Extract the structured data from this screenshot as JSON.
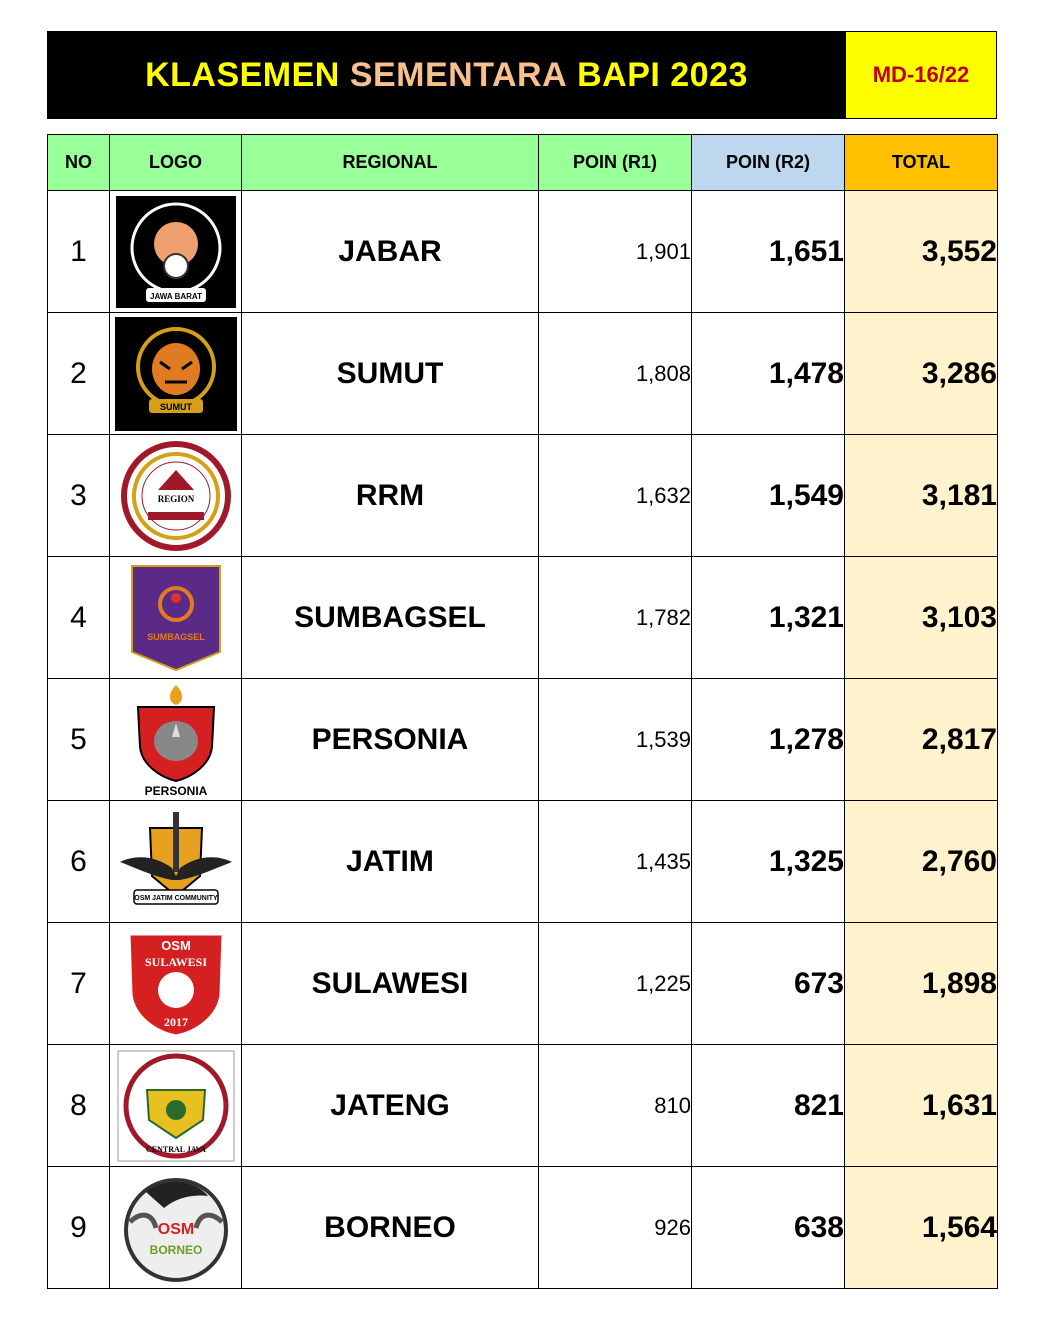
{
  "header": {
    "title_part1": "KLASEMEN ",
    "title_part2": "SEMENTARA ",
    "title_part3": "BAPI 2023",
    "code": "MD-16/22"
  },
  "columns": {
    "no": "NO",
    "logo": "LOGO",
    "regional": "REGIONAL",
    "poin_r1": "POIN (R1)",
    "poin_r2": "POIN (R2)",
    "total": "TOTAL"
  },
  "colors": {
    "header_green": "#99ff99",
    "header_blue": "#bdd7ee",
    "header_orange": "#ffc000",
    "total_bg": "#fff2cc",
    "title_yellow": "#ffff00",
    "title_peach": "#f9c08f",
    "code_red": "#c00000"
  },
  "rows": [
    {
      "no": "1",
      "regional": "JABAR",
      "r1": "1,901",
      "r2": "1,651",
      "total": "3,552",
      "logo": {
        "icon": "osm-jabar-logo",
        "text": "JAWA BARAT"
      }
    },
    {
      "no": "2",
      "regional": "SUMUT",
      "r1": "1,808",
      "r2": "1,478",
      "total": "3,286",
      "logo": {
        "icon": "tiger-sumut-logo",
        "text": "SUMUT"
      }
    },
    {
      "no": "3",
      "regional": "RRM",
      "r1": "1,632",
      "r2": "1,549",
      "total": "3,181",
      "logo": {
        "icon": "region-rrm-logo",
        "text": "REGION"
      }
    },
    {
      "no": "4",
      "regional": "SUMBAGSEL",
      "r1": "1,782",
      "r2": "1,321",
      "total": "3,103",
      "logo": {
        "icon": "sumbagsel-pennant-logo",
        "text": "SUMBAGSEL"
      }
    },
    {
      "no": "5",
      "regional": "PERSONIA",
      "r1": "1,539",
      "r2": "1,278",
      "total": "2,817",
      "logo": {
        "icon": "rhino-personia-logo",
        "text": "PERSONIA"
      }
    },
    {
      "no": "6",
      "regional": "JATIM",
      "r1": "1,435",
      "r2": "1,325",
      "total": "2,760",
      "logo": {
        "icon": "eagle-jatim-logo",
        "text": "OSM JATIM COMMUNITY"
      }
    },
    {
      "no": "7",
      "regional": "SULAWESI",
      "r1": "1,225",
      "r2": "673",
      "total": "1,898",
      "logo": {
        "icon": "osm-sulawesi-logo",
        "text": "SULAWESI"
      }
    },
    {
      "no": "8",
      "regional": "JATENG",
      "r1": "810",
      "r2": "821",
      "total": "1,631",
      "logo": {
        "icon": "central-java-logo",
        "text": "CENTRAL JAVA"
      }
    },
    {
      "no": "9",
      "regional": "BORNEO",
      "r1": "926",
      "r2": "638",
      "total": "1,564",
      "logo": {
        "icon": "osm-borneo-logo",
        "text": "OSM"
      }
    }
  ]
}
